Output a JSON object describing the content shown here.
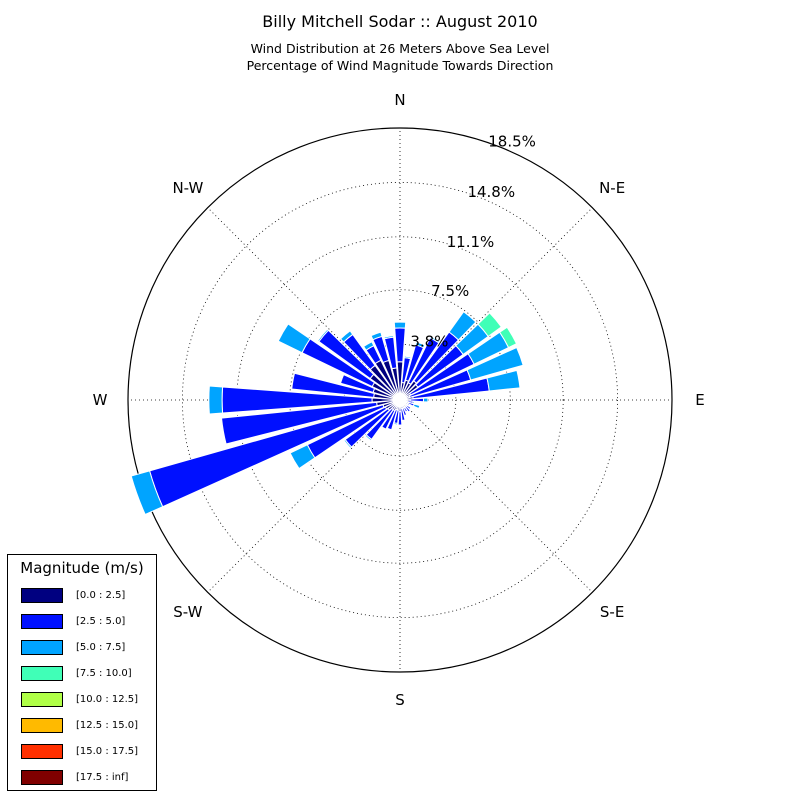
{
  "title": "Billy Mitchell Sodar :: August 2010",
  "subtitle_line1": "Wind Distribution at 26 Meters Above Sea Level",
  "subtitle_line2": "Percentage of Wind Magnitude Towards Direction",
  "chart_data": {
    "type": "windrose",
    "directions": [
      "N",
      "N-E",
      "E",
      "S-E",
      "S",
      "S-W",
      "W",
      "N-W"
    ],
    "radial_ticks": [
      "3.8%",
      "7.5%",
      "11.1%",
      "14.8%",
      "18.5%"
    ],
    "radial_tick_values": [
      3.8,
      7.5,
      11.1,
      14.8,
      18.5
    ],
    "rmax": 18.5,
    "sectors_deg": [
      0,
      10,
      20,
      30,
      40,
      50,
      60,
      70,
      80,
      90,
      100,
      110,
      120,
      130,
      140,
      150,
      160,
      170,
      180,
      190,
      200,
      210,
      220,
      230,
      240,
      250,
      260,
      270,
      280,
      290,
      300,
      310,
      320,
      330,
      340,
      350
    ],
    "series": [
      {
        "name": "[0.0 : 2.5]",
        "color": "#000080",
        "values": [
          2.6,
          1.2,
          1.4,
          1.3,
          1.6,
          1.5,
          0.8,
          0.7,
          0.9,
          0.7,
          0.5,
          0.6,
          0.6,
          0.6,
          0.6,
          0.6,
          0.6,
          0.6,
          0.8,
          0.7,
          0.7,
          0.8,
          0.8,
          1.0,
          1.1,
          1.2,
          1.6,
          1.9,
          1.8,
          1.9,
          2.1,
          2.5,
          2.9,
          3.0,
          2.8,
          2.2
        ]
      },
      {
        "name": "[2.5 : 5.0]",
        "color": "#0010ff",
        "values": [
          2.3,
          1.7,
          2.5,
          3.4,
          4.1,
          3.8,
          4.8,
          4.3,
          5.2,
          0.9,
          0.4,
          0.4,
          0.1,
          0.3,
          0.4,
          0.3,
          0.5,
          0.8,
          0.9,
          0.9,
          1.4,
          1.4,
          2.5,
          3.6,
          5.9,
          16.5,
          10.6,
          10.2,
          5.6,
          2.3,
          5.3,
          4.3,
          2.6,
          1.1,
          1.7,
          2.1
        ]
      },
      {
        "name": "[5.0 : 7.5]",
        "color": "#00a4ff",
        "values": [
          0.4,
          0.1,
          0.2,
          0.1,
          1.7,
          2.1,
          2.6,
          3.7,
          2.1,
          0.3,
          0.1,
          0.4,
          0.0,
          0.0,
          0.0,
          0.0,
          0.0,
          0.0,
          0.0,
          0.1,
          0.0,
          0.0,
          0.1,
          0.1,
          1.3,
          1.3,
          0.0,
          0.9,
          0.0,
          0.0,
          1.8,
          0.1,
          0.3,
          0.3,
          0.3,
          0.1
        ]
      },
      {
        "name": "[7.5 : 10.0]",
        "color": "#40ffb7",
        "values": [
          0,
          0,
          0,
          0,
          0,
          1.1,
          0.6,
          0,
          0,
          0,
          0,
          0,
          0,
          0,
          0,
          0,
          0,
          0,
          0,
          0,
          0,
          0,
          0,
          0,
          0,
          0,
          0,
          0,
          0,
          0,
          0,
          0,
          0,
          0,
          0,
          0
        ]
      },
      {
        "name": "[10.0 : 12.5]",
        "color": "#b0ff47",
        "values": [
          0,
          0,
          0,
          0,
          0,
          0,
          0,
          0,
          0,
          0,
          0,
          0,
          0,
          0,
          0,
          0,
          0,
          0,
          0,
          0,
          0,
          0,
          0,
          0,
          0,
          0,
          0,
          0,
          0,
          0,
          0,
          0,
          0,
          0,
          0,
          0
        ]
      },
      {
        "name": "[12.5 : 15.0]",
        "color": "#ffba00",
        "values": [
          0,
          0,
          0,
          0,
          0,
          0,
          0,
          0,
          0,
          0,
          0,
          0,
          0,
          0,
          0,
          0,
          0,
          0,
          0,
          0,
          0,
          0,
          0,
          0,
          0,
          0,
          0,
          0,
          0,
          0,
          0,
          0,
          0,
          0,
          0,
          0
        ]
      },
      {
        "name": "[15.0 : 17.5]",
        "color": "#ff3000",
        "values": [
          0,
          0,
          0,
          0,
          0,
          0,
          0,
          0,
          0,
          0,
          0,
          0,
          0,
          0,
          0,
          0,
          0,
          0,
          0,
          0,
          0,
          0,
          0,
          0,
          0,
          0,
          0,
          0,
          0,
          0,
          0,
          0,
          0,
          0,
          0,
          0
        ]
      },
      {
        "name": "[17.5 : inf]",
        "color": "#800000",
        "values": [
          0,
          0,
          0,
          0,
          0,
          0,
          0,
          0,
          0,
          0,
          0,
          0,
          0,
          0,
          0,
          0,
          0,
          0,
          0,
          0,
          0,
          0,
          0,
          0,
          0,
          0,
          0,
          0,
          0,
          0,
          0,
          0,
          0,
          0,
          0,
          0
        ]
      }
    ],
    "legend": {
      "title": "Magnitude (m/s)",
      "placement": "lower-left"
    },
    "grid": true
  }
}
